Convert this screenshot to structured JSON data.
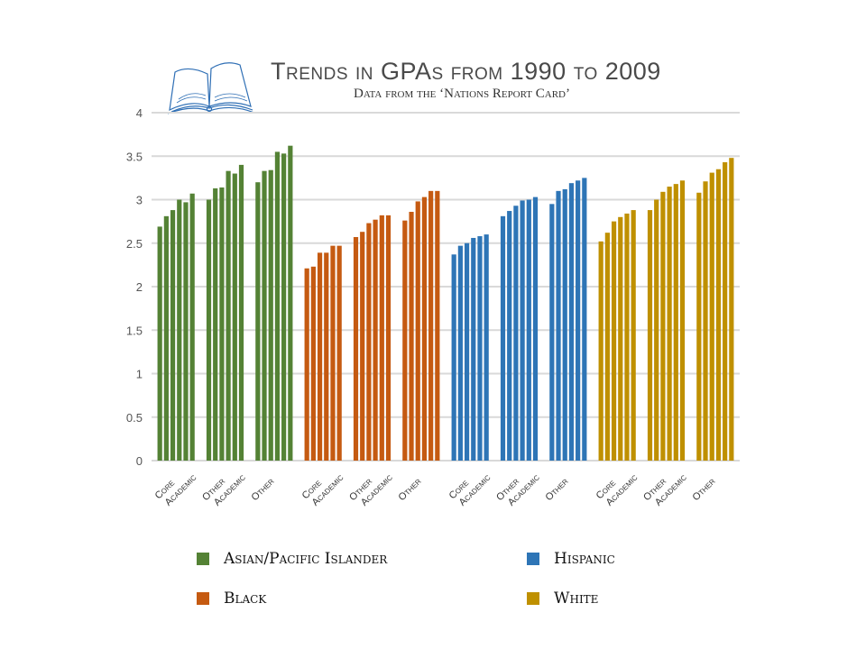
{
  "chart_data": {
    "type": "bar",
    "title": "Trends in GPAs from 1990 to 2009",
    "subtitle": "Data from the ‘Nations Report Card’",
    "xlabel": "",
    "ylabel": "",
    "ylim": [
      0,
      4
    ],
    "yticks": [
      "0",
      "0.5",
      "1",
      "1.5",
      "2",
      "2.5",
      "3",
      "3.5",
      "4"
    ],
    "ytick_values": [
      0,
      0.5,
      1,
      1.5,
      2,
      2.5,
      3,
      3.5,
      4
    ],
    "grid": true,
    "legend_position": "bottom",
    "categories": [
      "Core Academic",
      "Other Academic",
      "Other"
    ],
    "category_lines": [
      [
        "Core",
        "Academic"
      ],
      [
        "Other",
        "Academic"
      ],
      [
        "Other"
      ]
    ],
    "bars_per_category": 6,
    "series": [
      {
        "name": "Asian/Pacific Islander",
        "color": "#548235",
        "values": [
          [
            2.69,
            2.81,
            2.88,
            3.0,
            2.97,
            3.07
          ],
          [
            3.0,
            3.13,
            3.14,
            3.33,
            3.3,
            3.4
          ],
          [
            3.2,
            3.33,
            3.34,
            3.55,
            3.53,
            3.62
          ]
        ]
      },
      {
        "name": "Black",
        "color": "#C55A11",
        "values": [
          [
            2.21,
            2.23,
            2.39,
            2.39,
            2.47,
            2.47
          ],
          [
            2.57,
            2.63,
            2.73,
            2.77,
            2.82,
            2.82
          ],
          [
            2.76,
            2.86,
            2.98,
            3.03,
            3.1,
            3.1
          ]
        ]
      },
      {
        "name": "Hispanic",
        "color": "#2E75B6",
        "values": [
          [
            2.37,
            2.47,
            2.5,
            2.56,
            2.58,
            2.6
          ],
          [
            2.81,
            2.87,
            2.93,
            2.99,
            3.0,
            3.03
          ],
          [
            2.95,
            3.1,
            3.12,
            3.19,
            3.22,
            3.25
          ]
        ]
      },
      {
        "name": "White",
        "color": "#BF9000",
        "values": [
          [
            2.52,
            2.62,
            2.75,
            2.8,
            2.84,
            2.88
          ],
          [
            2.88,
            3.0,
            3.09,
            3.15,
            3.18,
            3.22
          ],
          [
            3.08,
            3.21,
            3.31,
            3.35,
            3.43,
            3.48
          ]
        ]
      }
    ]
  },
  "colors": {
    "grid": "#d9d9d9",
    "title": "#4a4a4a",
    "logo": "#2f6fb5"
  }
}
